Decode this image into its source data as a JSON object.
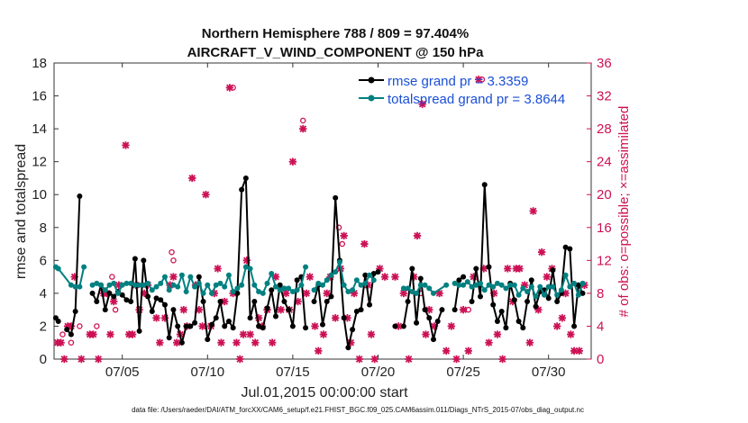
{
  "chart_data": {
    "type": "line",
    "title_line1": "Northern Hemisphere 788 / 809 = 97.404%",
    "title_line2": "AIRCRAFT_V_WIND_COMPONENT @ 150 hPa",
    "xlabel": "Jul.01,2015 00:00:00 start",
    "ylabel": "rmse and totalspread",
    "ylabel_right": "# of obs: o=possible; ×=assimilated",
    "xlim": [
      1,
      32.5
    ],
    "ylim": [
      0,
      18
    ],
    "ylim_right": [
      0,
      36
    ],
    "x_ticks": [
      5,
      10,
      15,
      20,
      25,
      30
    ],
    "x_tick_labels": [
      "07/05",
      "07/10",
      "07/15",
      "07/20",
      "07/25",
      "07/30"
    ],
    "y_ticks": [
      0,
      2,
      4,
      6,
      8,
      10,
      12,
      14,
      16,
      18
    ],
    "y_tick_labels": [
      "0",
      "2",
      "4",
      "6",
      "8",
      "10",
      "12",
      "14",
      "16",
      "18"
    ],
    "y_right_ticks": [
      0,
      4,
      8,
      12,
      16,
      20,
      24,
      28,
      32,
      36
    ],
    "y_right_tick_labels": [
      "0",
      "4",
      "8",
      "12",
      "16",
      "20",
      "24",
      "28",
      "32",
      "36"
    ],
    "legend_position": "top-right",
    "series": [
      {
        "name": "rmse grand pr = 3.3359",
        "color": "#000000",
        "axis": "left",
        "marker": "filled-circle",
        "x": [
          1.1,
          1.25,
          1.5,
          1.75,
          2.0,
          2.25,
          2.5,
          2.75,
          3.0,
          3.25,
          3.5,
          3.75,
          4.0,
          4.25,
          4.5,
          4.75,
          5.0,
          5.25,
          5.5,
          5.75,
          6.0,
          6.25,
          6.5,
          6.75,
          7.0,
          7.25,
          7.5,
          7.75,
          8.0,
          8.25,
          8.5,
          8.75,
          9.0,
          9.25,
          9.5,
          9.75,
          10.0,
          10.25,
          10.5,
          10.75,
          11.0,
          11.25,
          11.5,
          11.75,
          12.0,
          12.25,
          12.5,
          12.75,
          13.0,
          13.25,
          13.5,
          13.75,
          14.0,
          14.25,
          14.5,
          14.75,
          15.0,
          15.25,
          15.5,
          15.75,
          16.0,
          16.25,
          16.5,
          16.75,
          17.0,
          17.25,
          17.5,
          17.75,
          18.0,
          18.25,
          18.5,
          18.75,
          19.0,
          19.25,
          19.5,
          19.75,
          20.0,
          20.25
        ],
        "y": [
          2.5,
          2.3,
          null,
          1.8,
          1.5,
          2.9,
          9.9,
          null,
          null,
          4.0,
          3.5,
          4.5,
          3.0,
          4.0,
          3.8,
          4.1,
          3.9,
          3.6,
          3.5,
          6.1,
          1.7,
          6.0,
          3.8,
          2.9,
          3.7,
          3.6,
          3.3,
          1.3,
          3.0,
          2.0,
          1.0,
          2.0,
          2.0,
          2.2,
          5.0,
          3.5,
          1.2,
          2.1,
          2.5,
          3.5,
          2.0,
          2.3,
          1.9,
          4.0,
          10.3,
          11.0,
          2.5,
          3.5,
          2.0,
          1.9,
          3.1,
          4.2,
          2.6,
          4.5,
          3.5,
          3.0,
          2.0,
          4.8,
          5.0,
          1.9,
          null,
          3.5,
          4.5,
          2.1,
          3.5,
          3.8,
          9.8,
          6.0,
          2.5,
          0.7,
          1.8,
          2.9,
          3.0,
          5.1,
          3.3,
          5.2,
          5.3,
          null
        ]
      },
      {
        "name": "rmse grand pr = 3.3359 (segment 2)",
        "color": "#000000",
        "axis": "left",
        "marker": "filled-circle",
        "x": [
          21.0,
          21.25,
          21.5,
          21.75,
          22.0,
          22.25,
          22.5,
          22.75,
          23.0,
          23.25,
          23.5,
          23.75,
          24.0,
          24.25,
          24.5,
          24.75,
          25.0,
          25.25,
          25.5,
          25.75,
          26.0,
          26.25,
          26.5,
          26.75,
          27.0,
          27.25,
          27.5,
          27.75,
          28.0,
          28.25,
          28.5,
          28.75,
          29.0,
          29.25,
          29.5,
          29.75,
          30.0,
          30.25,
          30.5,
          30.75,
          31.0,
          31.25,
          31.5,
          31.75,
          32.0
        ],
        "y": [
          2.0,
          null,
          2.0,
          3.5,
          5.5,
          2.2,
          4.9,
          3.0,
          2.5,
          1.2,
          2.3,
          3.0,
          null,
          null,
          3.0,
          4.8,
          5.0,
          null,
          3.5,
          5.5,
          3.8,
          10.6,
          5.6,
          3.3,
          2.3,
          2.9,
          1.9,
          4.6,
          3.6,
          2.3,
          1.9,
          3.5,
          4.8,
          3.2,
          4.1,
          4.2,
          3.7,
          5.4,
          3.5,
          4.0,
          6.8,
          6.7,
          2.0,
          4.5,
          4.0
        ]
      },
      {
        "name": "totalspread grand pr = 3.8644",
        "color": "#008080",
        "axis": "left",
        "marker": "filled-circle",
        "x": [
          1.1,
          1.25,
          2.0,
          2.25,
          2.5,
          2.75,
          3.0,
          3.25,
          3.5,
          3.75,
          4.0,
          4.25,
          4.5,
          4.75,
          5.0,
          5.25,
          5.5,
          5.75,
          6.0,
          6.25,
          6.5,
          6.75,
          7.0,
          7.25,
          7.5,
          7.75,
          8.0,
          8.25,
          8.5,
          8.75,
          9.0,
          9.25,
          9.5,
          9.75,
          10.0,
          10.25,
          10.5,
          10.75,
          11.0,
          11.25,
          11.5,
          11.75,
          12.0,
          12.25,
          12.5,
          12.75,
          13.0,
          13.25,
          13.5,
          13.75,
          14.0,
          14.25,
          14.5,
          14.75,
          15.0,
          15.25,
          15.5,
          15.75,
          16.0,
          16.25,
          16.5,
          16.75,
          17.0,
          17.25,
          17.5,
          17.75,
          18.0,
          18.25,
          18.5,
          18.75,
          19.0,
          19.25,
          19.5,
          19.75
        ],
        "y": [
          5.6,
          5.5,
          4.5,
          4.4,
          4.4,
          5.6,
          null,
          4.5,
          4.6,
          4.5,
          4.2,
          4.5,
          4.6,
          4.0,
          4.5,
          4.6,
          4.6,
          4.5,
          4.5,
          4.5,
          4.6,
          4.2,
          4.4,
          4.6,
          5.0,
          4.2,
          4.5,
          4.4,
          5.1,
          4.1,
          5.0,
          4.4,
          4.6,
          4.0,
          4.5,
          4.0,
          4.5,
          4.6,
          4.4,
          5.1,
          4.1,
          4.3,
          4.5,
          5.6,
          5.5,
          4.5,
          4.1,
          4.0,
          4.6,
          5.2,
          4.4,
          4.2,
          4.3,
          4.3,
          4.1,
          4.2,
          4.5,
          5.6,
          null,
          4.2,
          4.6,
          4.5,
          4.8,
          5.1,
          5.3,
          5.9,
          4.5,
          4.1,
          4.2,
          4.8,
          4.5,
          4.6,
          5.1,
          4.8
        ]
      },
      {
        "name": "totalspread grand pr = 3.8644 (segment 2)",
        "color": "#008080",
        "axis": "left",
        "marker": "filled-circle",
        "x": [
          21.5,
          21.75,
          22.0,
          22.25,
          22.5,
          22.75,
          23.0,
          23.25,
          24.0,
          24.25,
          24.5,
          24.75,
          25.0,
          25.25,
          25.5,
          25.75,
          26.0,
          26.25,
          26.5,
          26.75,
          27.0,
          27.25,
          27.5,
          27.75,
          28.0,
          28.25,
          28.5,
          28.75,
          29.0,
          29.25,
          29.5,
          29.75,
          30.0,
          30.25,
          30.5,
          30.75,
          31.0,
          31.25,
          31.5,
          31.75,
          32.0
        ],
        "y": [
          4.3,
          4.3,
          4.1,
          4.0,
          4.5,
          4.5,
          4.3,
          4.0,
          4.5,
          null,
          4.6,
          4.5,
          4.5,
          4.7,
          4.4,
          4.5,
          4.6,
          4.2,
          4.5,
          4.4,
          4.6,
          4.5,
          4.3,
          4.5,
          4.5,
          3.9,
          4.3,
          4.1,
          4.4,
          3.8,
          4.4,
          3.9,
          4.4,
          4.4,
          3.9,
          4.2,
          5.1,
          4.4,
          4.6,
          3.9,
          4.6
        ]
      }
    ],
    "obs_possible": {
      "name": "possible (o)",
      "color": "#cc1155",
      "axis": "right",
      "points": [
        [
          1.5,
          3
        ],
        [
          2.0,
          2
        ],
        [
          2.5,
          4
        ],
        [
          3.5,
          4
        ],
        [
          4.2,
          8
        ],
        [
          4.4,
          10
        ],
        [
          4.6,
          6
        ],
        [
          7.9,
          13
        ],
        [
          8.0,
          12
        ],
        [
          11.5,
          33
        ],
        [
          15.6,
          29
        ],
        [
          17.7,
          16
        ],
        [
          17.9,
          14
        ],
        [
          22.5,
          8
        ],
        [
          25.3,
          6
        ],
        [
          26.1,
          34
        ]
      ]
    },
    "obs_assimilated": {
      "name": "assimilated (×)",
      "color": "#cc1155",
      "axis": "right",
      "points": [
        [
          1.2,
          2
        ],
        [
          1.4,
          2
        ],
        [
          1.6,
          0
        ],
        [
          1.8,
          4
        ],
        [
          2.0,
          4
        ],
        [
          2.2,
          10
        ],
        [
          2.6,
          0
        ],
        [
          3.1,
          3
        ],
        [
          3.3,
          3
        ],
        [
          3.6,
          0
        ],
        [
          3.9,
          8
        ],
        [
          4.1,
          8
        ],
        [
          4.3,
          3
        ],
        [
          4.5,
          7
        ],
        [
          4.8,
          9
        ],
        [
          5.2,
          26
        ],
        [
          5.4,
          3
        ],
        [
          5.6,
          3
        ],
        [
          5.8,
          9
        ],
        [
          6.0,
          6
        ],
        [
          6.3,
          8
        ],
        [
          6.5,
          9
        ],
        [
          7.0,
          5
        ],
        [
          7.2,
          2
        ],
        [
          7.5,
          5
        ],
        [
          7.8,
          9
        ],
        [
          8.0,
          10
        ],
        [
          8.2,
          2
        ],
        [
          8.4,
          3
        ],
        [
          8.6,
          6
        ],
        [
          8.8,
          4
        ],
        [
          9.1,
          22
        ],
        [
          9.3,
          9
        ],
        [
          9.5,
          6
        ],
        [
          9.7,
          4
        ],
        [
          9.9,
          20
        ],
        [
          10.2,
          4
        ],
        [
          10.4,
          8
        ],
        [
          10.6,
          11
        ],
        [
          10.8,
          2
        ],
        [
          11.0,
          7
        ],
        [
          11.3,
          33
        ],
        [
          11.5,
          8
        ],
        [
          11.7,
          2
        ],
        [
          11.9,
          0
        ],
        [
          12.1,
          3
        ],
        [
          12.3,
          12
        ],
        [
          12.5,
          3
        ],
        [
          12.8,
          2
        ],
        [
          13.0,
          5
        ],
        [
          13.2,
          4
        ],
        [
          13.5,
          6
        ],
        [
          13.8,
          2
        ],
        [
          14.0,
          10
        ],
        [
          14.3,
          6
        ],
        [
          14.6,
          8
        ],
        [
          14.8,
          6
        ],
        [
          15.0,
          24
        ],
        [
          15.3,
          7
        ],
        [
          15.6,
          28
        ],
        [
          15.8,
          8
        ],
        [
          16.0,
          10
        ],
        [
          16.3,
          4
        ],
        [
          16.5,
          1
        ],
        [
          16.8,
          3
        ],
        [
          17.0,
          8
        ],
        [
          17.2,
          10
        ],
        [
          17.5,
          5
        ],
        [
          17.8,
          11
        ],
        [
          18.0,
          15
        ],
        [
          18.2,
          5
        ],
        [
          18.4,
          2
        ],
        [
          18.6,
          8
        ],
        [
          18.9,
          0
        ],
        [
          19.2,
          14
        ],
        [
          19.4,
          9
        ],
        [
          19.6,
          3
        ],
        [
          19.8,
          0
        ],
        [
          20.1,
          11
        ],
        [
          20.4,
          10
        ],
        [
          21.0,
          10
        ],
        [
          21.2,
          4
        ],
        [
          21.5,
          8
        ],
        [
          21.8,
          0
        ],
        [
          22.1,
          10
        ],
        [
          22.3,
          15
        ],
        [
          22.6,
          31
        ],
        [
          22.8,
          3
        ],
        [
          23.0,
          6
        ],
        [
          23.3,
          4
        ],
        [
          23.6,
          8
        ],
        [
          24.0,
          1
        ],
        [
          24.3,
          4
        ],
        [
          24.6,
          0
        ],
        [
          25.0,
          6
        ],
        [
          25.3,
          1
        ],
        [
          25.6,
          10
        ],
        [
          25.9,
          34
        ],
        [
          26.2,
          11
        ],
        [
          26.5,
          2
        ],
        [
          26.8,
          8
        ],
        [
          27.0,
          3
        ],
        [
          27.3,
          0
        ],
        [
          27.6,
          11
        ],
        [
          27.9,
          7
        ],
        [
          28.1,
          11
        ],
        [
          28.3,
          11
        ],
        [
          28.6,
          9
        ],
        [
          28.9,
          2
        ],
        [
          29.1,
          18
        ],
        [
          29.4,
          6
        ],
        [
          29.6,
          13
        ],
        [
          29.9,
          10
        ],
        [
          30.2,
          11
        ],
        [
          30.5,
          4
        ],
        [
          30.8,
          5
        ],
        [
          31.0,
          8
        ],
        [
          31.3,
          3
        ],
        [
          31.5,
          1
        ],
        [
          31.8,
          1
        ],
        [
          32.1,
          9
        ]
      ]
    }
  },
  "legend": {
    "rmse": "rmse grand pr = 3.3359",
    "totalspread": "totalspread grand pr = 3.8644"
  },
  "footer": "data file: /Users/raeder/DAI/ATM_forcXX/CAM6_setup/f.e21.FHIST_BGC.f09_025.CAM6assim.011/Diags_NTrS_2015-07/obs_diag_output.nc",
  "colors": {
    "rmse": "#000000",
    "totalspread": "#008080",
    "obs": "#cc1155",
    "legend_text": "#1a4fd6"
  }
}
